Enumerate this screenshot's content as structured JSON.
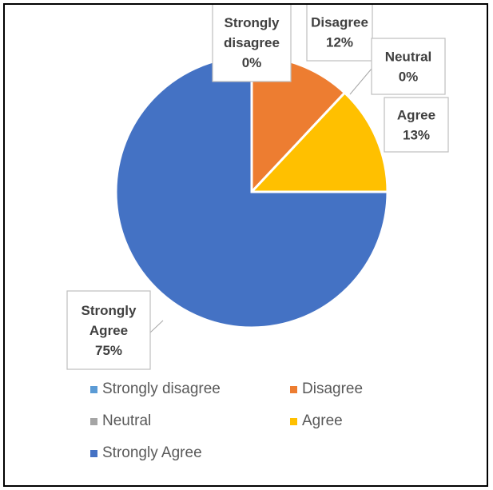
{
  "chart_data": {
    "type": "pie",
    "title": "",
    "slices": [
      {
        "name": "Strongly disagree",
        "value": 0,
        "label": "0%",
        "color": "#5B9BD5"
      },
      {
        "name": "Disagree",
        "value": 12,
        "label": "12%",
        "color": "#ED7D31"
      },
      {
        "name": "Neutral",
        "value": 0,
        "label": "0%",
        "color": "#A5A5A5"
      },
      {
        "name": "Agree",
        "value": 13,
        "label": "13%",
        "color": "#FFC000"
      },
      {
        "name": "Strongly Agree",
        "value": 75,
        "label": "75%",
        "color": "#4472C4"
      }
    ],
    "legend_position": "bottom",
    "start_angle": "12 o'clock, clockwise",
    "data_label_lines": {
      "Strongly disagree": [
        "Strongly",
        "disagree",
        "0%"
      ],
      "Disagree": [
        "Disagree",
        "12%"
      ],
      "Neutral": [
        "Neutral",
        "0%"
      ],
      "Agree": [
        "Agree",
        "13%"
      ],
      "Strongly Agree": [
        "Strongly",
        "Agree",
        "75%"
      ]
    }
  }
}
